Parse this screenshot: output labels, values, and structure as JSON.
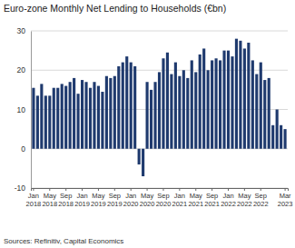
{
  "chart_data": {
    "type": "bar",
    "title": "Euro-zone Monthly Net Lending to Households (€bn)",
    "source": "Sources: Refinitiv, Capital Economics",
    "categories": [
      "Jan 2018",
      null,
      null,
      null,
      "May 2018",
      null,
      null,
      null,
      "Sep 2018",
      null,
      null,
      null,
      "Jan 2019",
      null,
      null,
      null,
      "May 2019",
      null,
      null,
      null,
      "Sep 2019",
      null,
      null,
      null,
      "Jan 2020",
      null,
      null,
      null,
      "May 2020",
      null,
      null,
      null,
      "Sep 2020",
      null,
      null,
      null,
      "Jan 2021",
      null,
      null,
      null,
      "May 2021",
      null,
      null,
      null,
      "Sep 2021",
      null,
      null,
      null,
      "Jan 2022",
      null,
      null,
      null,
      "May 2022",
      null,
      null,
      null,
      "Sep 2022",
      null,
      null,
      null,
      null,
      null,
      "Mar 2023"
    ],
    "values": [
      15.5,
      13.5,
      16.5,
      13.5,
      13.5,
      15.5,
      15.5,
      16.5,
      16,
      17,
      18,
      14,
      17.5,
      17,
      15.5,
      17,
      16,
      14.5,
      18.5,
      18,
      18.5,
      21,
      22,
      23.5,
      22,
      21,
      -4,
      -7,
      17,
      15,
      17,
      19.5,
      23,
      24.5,
      19,
      22,
      18.5,
      20,
      18,
      22.5,
      19.5,
      24,
      25.5,
      20,
      22.5,
      23,
      22.5,
      25,
      25,
      23.5,
      28,
      27.5,
      25.5,
      27,
      22.5,
      19,
      22,
      17.5,
      18,
      6,
      10,
      6,
      5
    ],
    "color": "#1f3a6e",
    "ylim": [
      -10,
      30
    ],
    "yticks": [
      -10,
      0,
      10,
      20,
      30
    ],
    "grid": true
  }
}
